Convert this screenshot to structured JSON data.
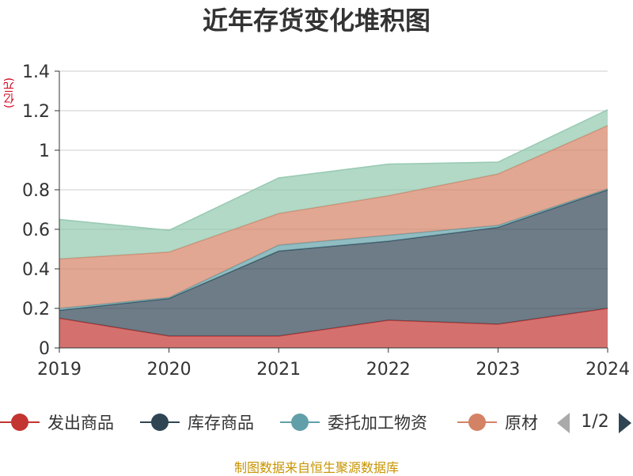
{
  "chart_data": {
    "type": "area",
    "stacked": true,
    "title": "近年存货变化堆积图",
    "unit_label": "(亿元)",
    "x": [
      "2019",
      "2020",
      "2021",
      "2022",
      "2023",
      "2024"
    ],
    "ylim": [
      0,
      1.4
    ],
    "yticks": [
      "0",
      "0.2",
      "0.4",
      "0.6",
      "0.8",
      "1",
      "1.2",
      "1.4"
    ],
    "grid": true,
    "series": [
      {
        "name": "发出商品",
        "color": "#c23531",
        "values": [
          0.15,
          0.06,
          0.06,
          0.14,
          0.12,
          0.2
        ]
      },
      {
        "name": "库存商品",
        "color": "#2f4554",
        "values": [
          0.04,
          0.19,
          0.43,
          0.4,
          0.49,
          0.6
        ]
      },
      {
        "name": "委托加工物资",
        "color": "#61a0a8",
        "values": [
          0.01,
          0.005,
          0.03,
          0.03,
          0.01,
          0.005
        ]
      },
      {
        "name": "原材料",
        "color": "#d48265",
        "values": [
          0.25,
          0.23,
          0.16,
          0.2,
          0.26,
          0.32
        ]
      },
      {
        "name": "",
        "color": "#91c7ae",
        "values": [
          0.2,
          0.11,
          0.18,
          0.16,
          0.06,
          0.08
        ]
      }
    ]
  },
  "legend": {
    "items": [
      "发出商品",
      "库存商品",
      "委托加工物资",
      "原材"
    ],
    "page_indicator": "1/2",
    "prev_icon": "chevron-left-icon",
    "next_icon": "chevron-right-icon"
  },
  "source": "制图数据来自恒生聚源数据库"
}
